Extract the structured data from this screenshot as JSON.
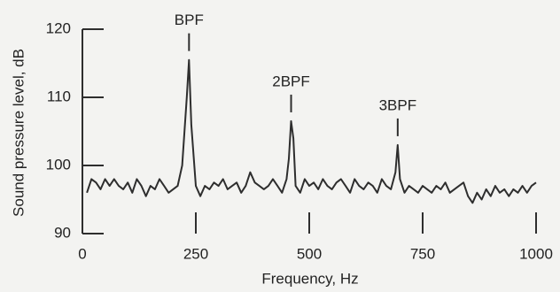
{
  "chart_data": {
    "type": "line",
    "x_label": "Frequency, Hz",
    "y_label": "Sound pressure level, dB",
    "color": "#2e2e2e",
    "xlim": [
      0,
      1000
    ],
    "ylim": [
      90,
      120
    ],
    "xticks": [
      0,
      250,
      500,
      750,
      1000
    ],
    "yticks": [
      90,
      100,
      110,
      120
    ],
    "annotations": [
      {
        "text": "BPF",
        "x": 235,
        "y": 115.5
      },
      {
        "text": "2BPF",
        "x": 460,
        "y": 106.5
      },
      {
        "text": "3BPF",
        "x": 695,
        "y": 103
      }
    ],
    "x": [
      10,
      20,
      30,
      40,
      50,
      60,
      70,
      80,
      90,
      100,
      110,
      120,
      130,
      140,
      150,
      160,
      170,
      180,
      190,
      200,
      210,
      220,
      230,
      235,
      240,
      250,
      260,
      270,
      280,
      290,
      300,
      310,
      320,
      330,
      340,
      350,
      360,
      370,
      380,
      390,
      400,
      410,
      420,
      430,
      440,
      450,
      455,
      460,
      465,
      470,
      480,
      490,
      500,
      510,
      520,
      530,
      540,
      550,
      560,
      570,
      580,
      590,
      600,
      610,
      620,
      630,
      640,
      650,
      660,
      670,
      680,
      690,
      695,
      700,
      710,
      720,
      730,
      740,
      750,
      760,
      770,
      780,
      790,
      800,
      810,
      820,
      830,
      840,
      850,
      860,
      870,
      880,
      890,
      900,
      910,
      920,
      930,
      940,
      950,
      960,
      970,
      980,
      990,
      1000
    ],
    "values": [
      96,
      98,
      97.5,
      96.5,
      98,
      97,
      98,
      97,
      96.5,
      97.5,
      96,
      98,
      97,
      95.5,
      97,
      96.5,
      98,
      97,
      96,
      96.5,
      97,
      100,
      110,
      115.5,
      106,
      97,
      95.5,
      97,
      96.5,
      97.5,
      97,
      98,
      96.5,
      97,
      97.5,
      96,
      97,
      99,
      97.5,
      97,
      96.5,
      97,
      98,
      97,
      96,
      98,
      101,
      106.5,
      104,
      97,
      96,
      98,
      97,
      97.5,
      96.5,
      98,
      97,
      96.5,
      97.5,
      98,
      97,
      96,
      98,
      97,
      96.5,
      97.5,
      97,
      96,
      98,
      97,
      96.5,
      99,
      103,
      98,
      96,
      97,
      96.5,
      96,
      97,
      96.5,
      96,
      97,
      96.5,
      97.5,
      96,
      96.5,
      97,
      97.5,
      95.5,
      94.5,
      96,
      95,
      96.5,
      95.5,
      97,
      96,
      96.5,
      95.5,
      96.5,
      96,
      97,
      96,
      97,
      97.5
    ]
  }
}
